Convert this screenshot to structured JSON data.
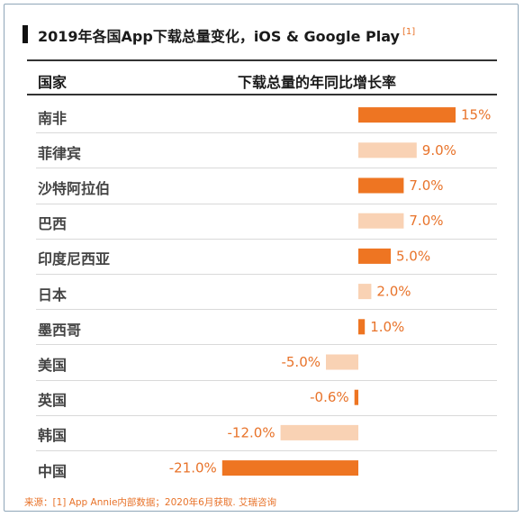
{
  "title": {
    "text": "2019年各国App下载总量变化，iOS & Google Play",
    "ref": "[1]"
  },
  "headers": {
    "country": "国家",
    "growth": "下载总量的年同比增长率"
  },
  "colors": {
    "dark": "#ee7522",
    "light": "#f9d2b4",
    "label": "#e8732a"
  },
  "chart_data": {
    "type": "bar",
    "orientation": "horizontal",
    "categories": [
      "南非",
      "菲律宾",
      "沙特阿拉伯",
      "巴西",
      "印度尼西亚",
      "日本",
      "墨西哥",
      "美国",
      "英国",
      "韩国",
      "中国"
    ],
    "values": [
      15,
      9.0,
      7.0,
      7.0,
      5.0,
      2.0,
      1.0,
      -5.0,
      -0.6,
      -12.0,
      -21.0
    ],
    "value_labels": [
      "15%",
      "9.0%",
      "7.0%",
      "7.0%",
      "5.0%",
      "2.0%",
      "1.0%",
      "-5.0%",
      "-0.6%",
      "-12.0%",
      "-21.0%"
    ],
    "shade": [
      "dark",
      "light",
      "dark",
      "light",
      "dark",
      "light",
      "dark",
      "light",
      "dark",
      "light",
      "dark"
    ],
    "xlabel": "",
    "ylabel": "",
    "grid": false,
    "legend": "none"
  },
  "source": "来源：[1] App Annie内部数据；2020年6月获取. 艾瑞咨询"
}
